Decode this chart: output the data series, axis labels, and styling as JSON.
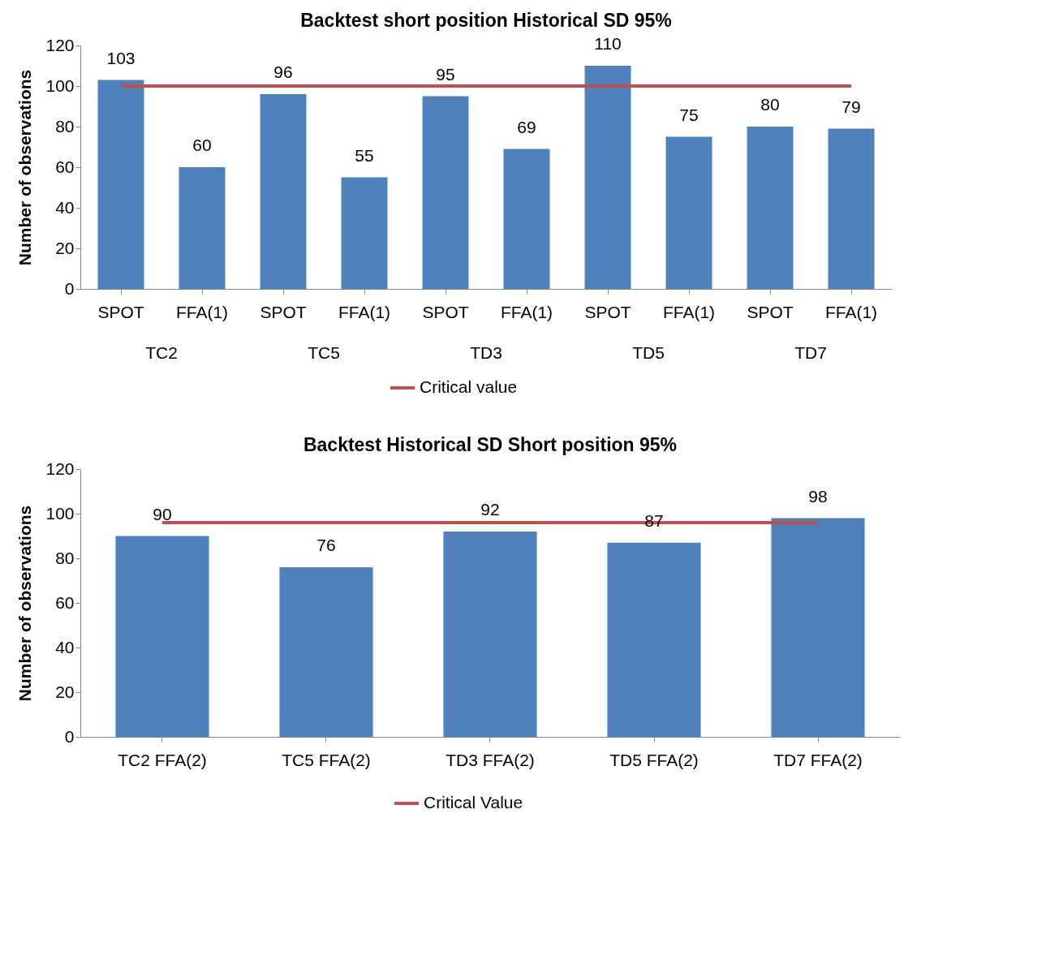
{
  "chart_data": [
    {
      "type": "bar",
      "title": "Backtest short position  Historical SD 95%",
      "ylabel": "Number of observations",
      "categories": [
        "SPOT",
        "FFA(1)",
        "SPOT",
        "FFA(1)",
        "SPOT",
        "FFA(1)",
        "SPOT",
        "FFA(1)",
        "SPOT",
        "FFA(1)"
      ],
      "series": [
        {
          "color": "#4f81bd",
          "values": [
            103,
            60,
            96,
            55,
            95,
            69,
            110,
            75,
            80,
            79
          ],
          "value_labels": [
            "103",
            "60",
            "96",
            "55",
            "95",
            "69",
            "110",
            "75",
            "80",
            "79"
          ]
        },
        {
          "type": "line",
          "name": "Critical value",
          "color": "#c0504d",
          "values": [
            100,
            100,
            100,
            100,
            100,
            100,
            100,
            100,
            100,
            100
          ]
        }
      ],
      "ylim": [
        0,
        120
      ],
      "yticks": [
        0,
        20,
        40,
        60,
        80,
        100,
        120
      ],
      "legend": "bottom",
      "annotations": [
        "TC2",
        "TC5",
        "TD3",
        "TD5",
        "TD7"
      ]
    },
    {
      "type": "bar",
      "title": "Backtest Historical SD Short position 95%",
      "ylabel": "Number of observations",
      "categories": [
        "TC2 FFA(2)",
        "TC5 FFA(2)",
        "TD3 FFA(2)",
        "TD5 FFA(2)",
        "TD7 FFA(2)"
      ],
      "series": [
        {
          "color": "#4f81bd",
          "values": [
            90,
            76,
            92,
            87,
            98
          ],
          "value_labels": [
            "90",
            "76",
            "92",
            "87",
            "98"
          ]
        },
        {
          "type": "line",
          "name": "Critical Value",
          "color": "#c0504d",
          "values": [
            96,
            96,
            96,
            96,
            96
          ]
        }
      ],
      "ylim": [
        0,
        120
      ],
      "yticks": [
        0,
        20,
        40,
        60,
        80,
        100,
        120
      ],
      "legend": "bottom"
    }
  ]
}
